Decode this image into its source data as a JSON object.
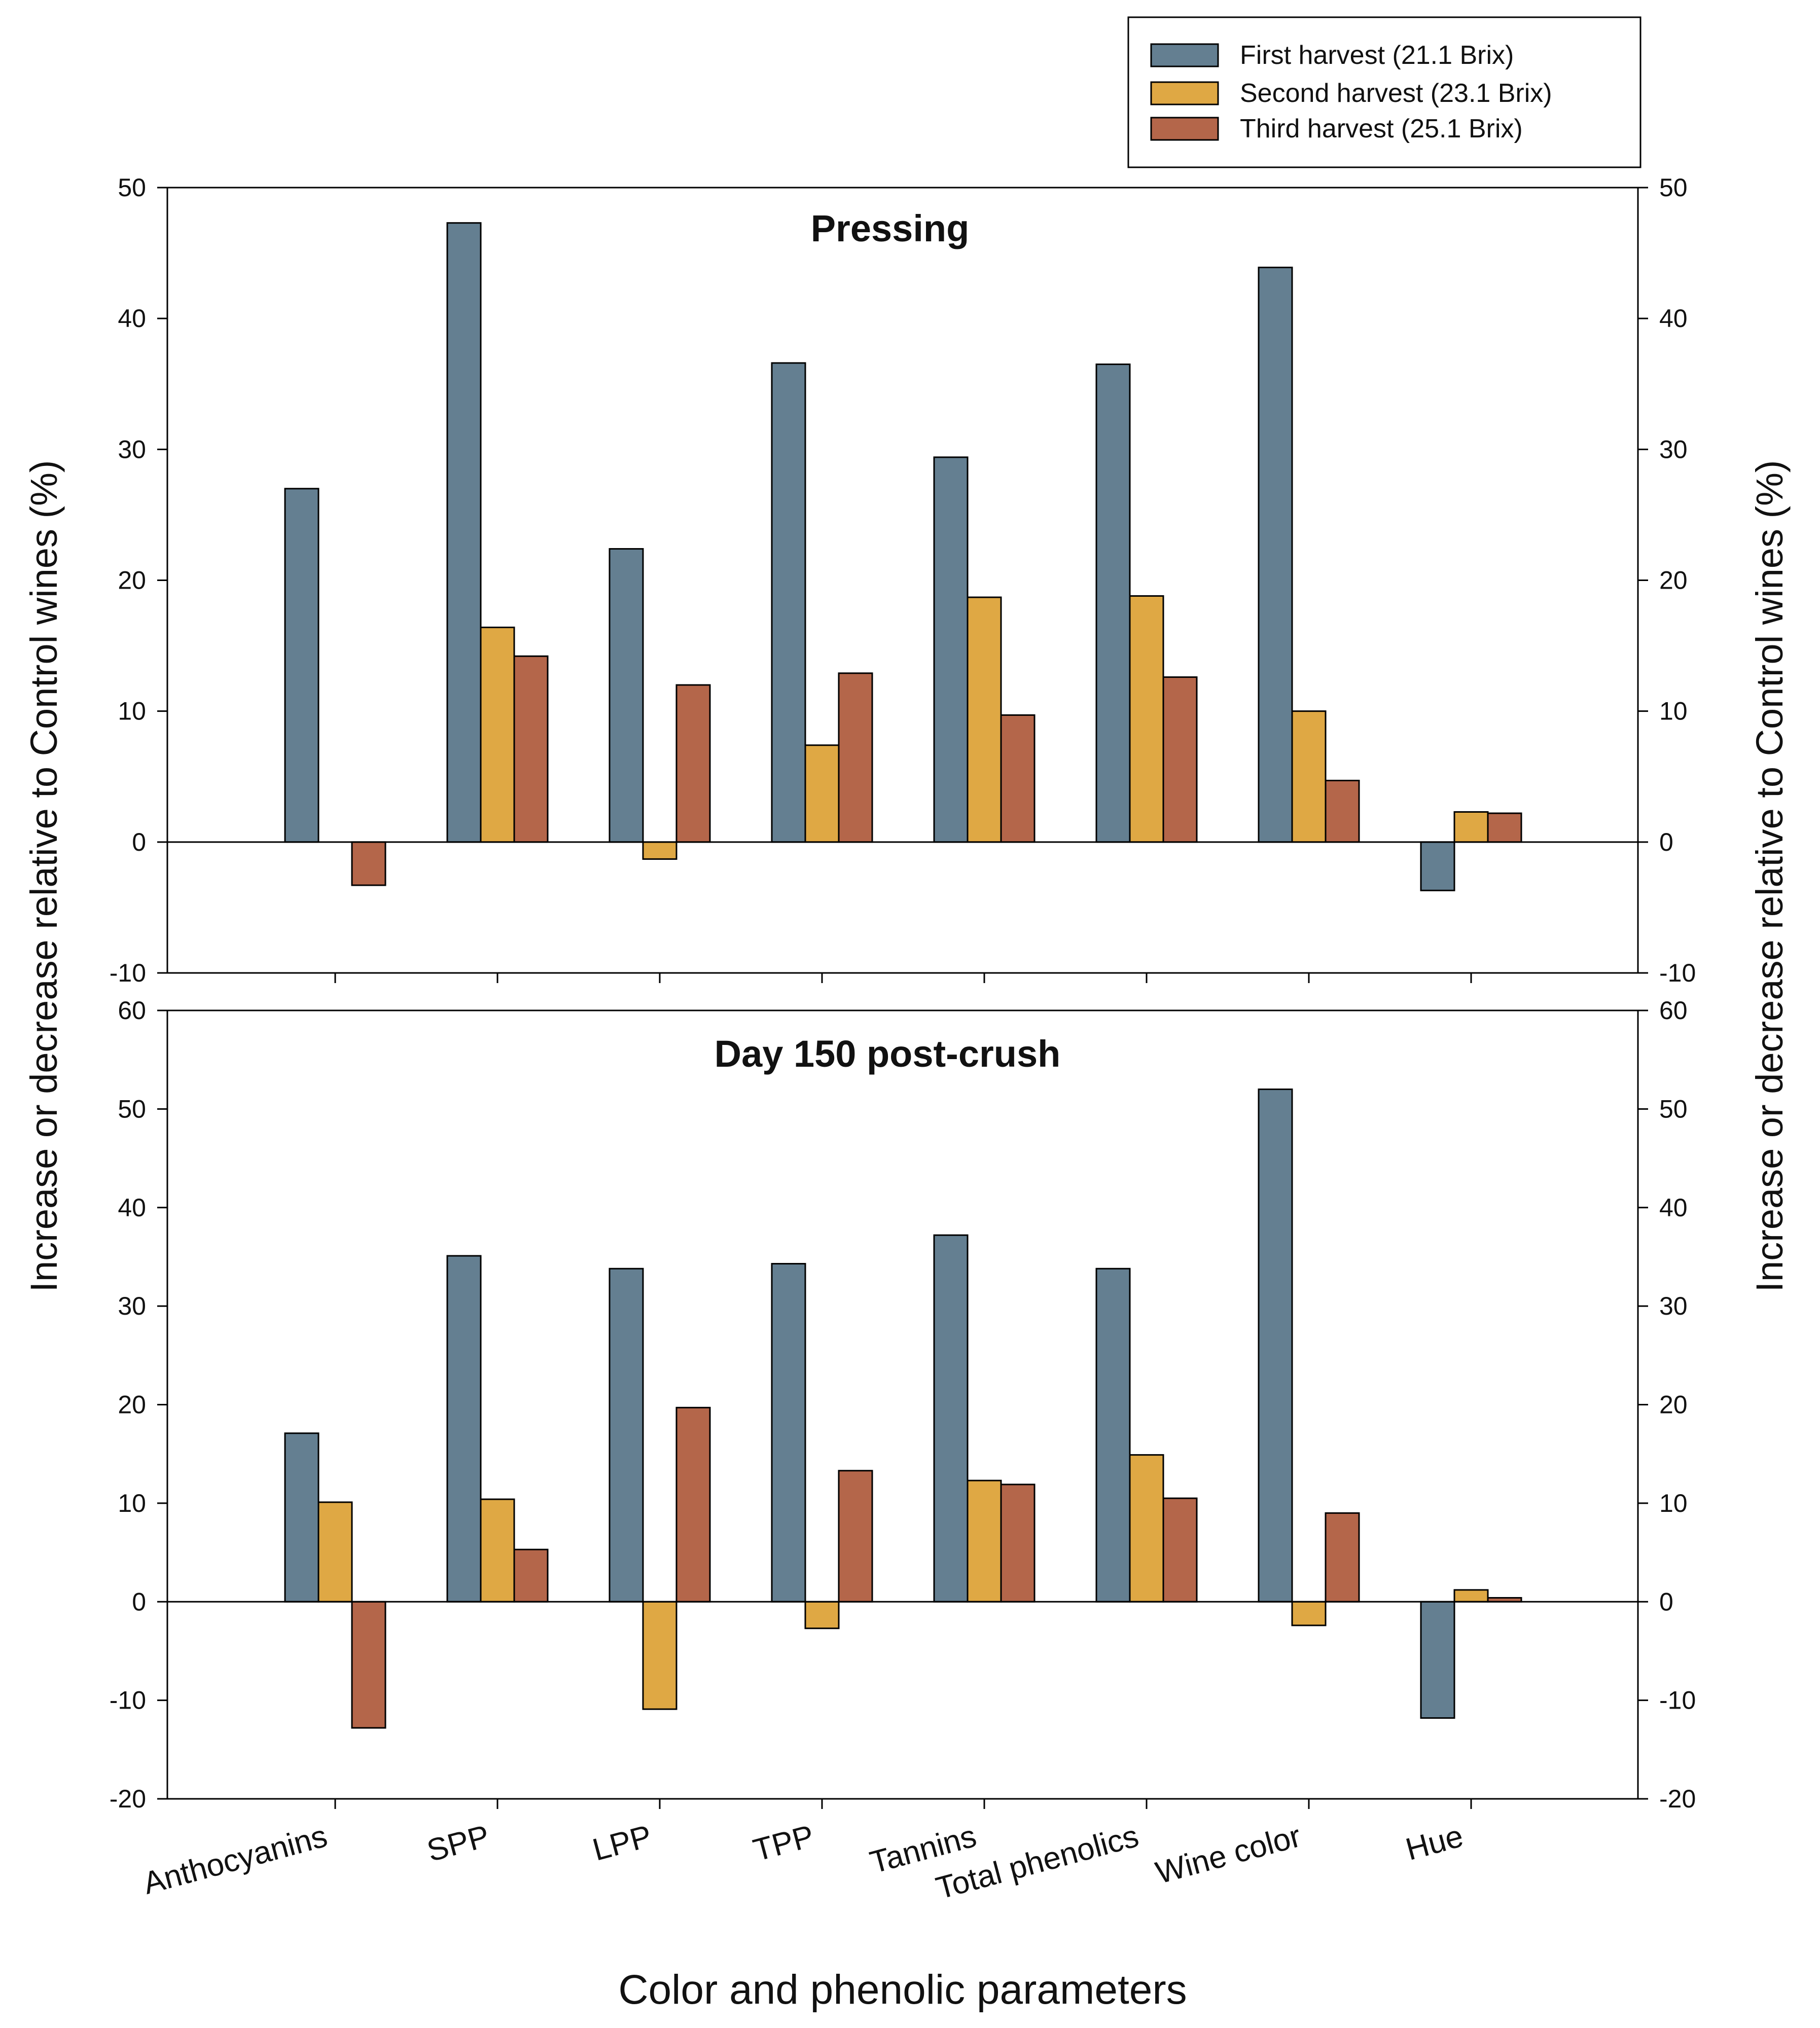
{
  "chart_data": {
    "type": "bar",
    "xlabel": "Color and phenolic parameters",
    "ylabel": "Increase or decrease relative to Control wines (%)",
    "categories": [
      "Anthocyanins",
      "SPP",
      "LPP",
      "TPP",
      "Tannins",
      "Total phenolics",
      "Wine color",
      "Hue"
    ],
    "legend": {
      "position": "top-right",
      "entries": [
        {
          "name": "First harvest (21.1 Brix)",
          "color": "#647f91"
        },
        {
          "name": "Second harvest (23.1 Brix)",
          "color": "#dfa844"
        },
        {
          "name": "Third harvest (25.1 Brix)",
          "color": "#b4664a"
        }
      ]
    },
    "panels": [
      {
        "title": "Pressing",
        "ylim": [
          -10,
          50
        ],
        "yticks": [
          -10,
          0,
          10,
          20,
          30,
          40,
          50
        ],
        "series": [
          {
            "name": "First harvest (21.1 Brix)",
            "values": [
              27.0,
              47.3,
              22.4,
              36.6,
              29.4,
              36.5,
              43.9,
              -3.7
            ]
          },
          {
            "name": "Second harvest (23.1 Brix)",
            "values": [
              0,
              16.4,
              -1.3,
              7.4,
              18.7,
              18.8,
              10.0,
              2.3
            ]
          },
          {
            "name": "Third harvest (25.1 Brix)",
            "values": [
              -3.3,
              14.2,
              12.0,
              12.9,
              9.7,
              12.6,
              4.7,
              2.2
            ]
          }
        ]
      },
      {
        "title": "Day 150 post-crush",
        "ylim": [
          -20,
          60
        ],
        "yticks": [
          -20,
          -10,
          0,
          10,
          20,
          30,
          40,
          50,
          60
        ],
        "series": [
          {
            "name": "First harvest (21.1 Brix)",
            "values": [
              17.1,
              35.1,
              33.8,
              34.3,
              37.2,
              33.8,
              52.0,
              -11.8
            ]
          },
          {
            "name": "Second harvest (23.1 Brix)",
            "values": [
              10.1,
              10.4,
              -10.9,
              -2.7,
              12.3,
              14.9,
              -2.4,
              1.2
            ]
          },
          {
            "name": "Third harvest (25.1 Brix)",
            "values": [
              -12.8,
              5.3,
              19.7,
              13.3,
              11.9,
              10.5,
              9.0,
              0.4
            ]
          }
        ]
      }
    ]
  }
}
